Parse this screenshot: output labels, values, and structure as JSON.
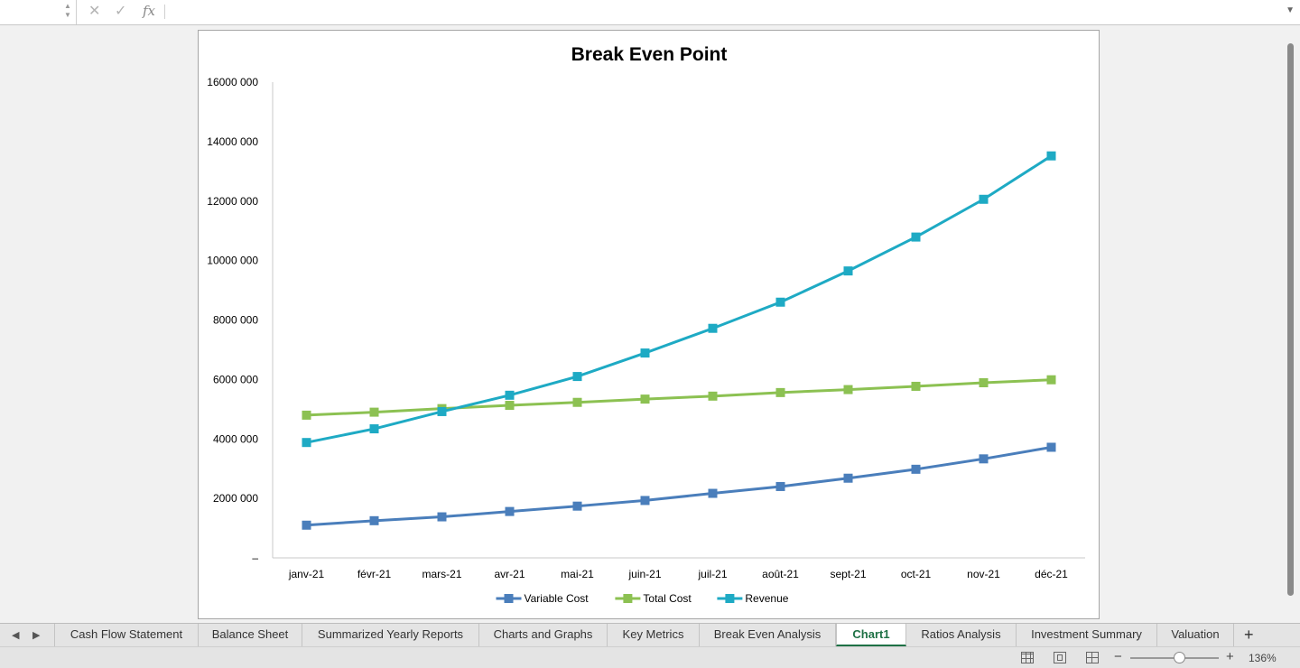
{
  "formula_bar": {
    "name_box": "",
    "cancel_icon": "cross-icon",
    "enter_icon": "check-icon",
    "fx_label": "fx",
    "value": ""
  },
  "chart_data": {
    "type": "line",
    "title": "Break Even Point",
    "xlabel": "",
    "ylabel": "",
    "categories": [
      "janv-21",
      "févr-21",
      "mars-21",
      "avr-21",
      "mai-21",
      "juin-21",
      "juil-21",
      "août-21",
      "sept-21",
      "oct-21",
      "nov-21",
      "déc-21"
    ],
    "yticks": [
      "–",
      "2000 000",
      "4000 000",
      "6000 000",
      "8000 000",
      "10000 000",
      "12000 000",
      "14000 000",
      "16000 000"
    ],
    "ylim": [
      0,
      16000000
    ],
    "legend_position": "bottom",
    "series": [
      {
        "name": "Variable Cost",
        "color": "#4a7ebb",
        "values": [
          1100000,
          1250000,
          1380000,
          1560000,
          1740000,
          1930000,
          2170000,
          2400000,
          2680000,
          2980000,
          3330000,
          3720000
        ]
      },
      {
        "name": "Total Cost",
        "color": "#8cc152",
        "values": [
          4800000,
          4900000,
          5020000,
          5130000,
          5230000,
          5340000,
          5440000,
          5560000,
          5660000,
          5770000,
          5890000,
          5990000
        ]
      },
      {
        "name": "Revenue",
        "color": "#1eaac4",
        "values": [
          3880000,
          4340000,
          4920000,
          5470000,
          6100000,
          6890000,
          7720000,
          8600000,
          9650000,
          10790000,
          12060000,
          13520000
        ]
      }
    ]
  },
  "tabs": {
    "nav_prev": "◀",
    "nav_next": "▶",
    "items": [
      "Cash Flow Statement",
      "Balance Sheet",
      "Summarized Yearly Reports",
      "Charts and Graphs",
      "Key Metrics",
      "Break Even Analysis",
      "Chart1",
      "Ratios Analysis",
      "Investment Summary",
      "Valuation"
    ],
    "active": "Chart1",
    "add_label": "+"
  },
  "status_bar": {
    "zoom_minus": "−",
    "zoom_plus": "+",
    "zoom_percent": "136%"
  }
}
